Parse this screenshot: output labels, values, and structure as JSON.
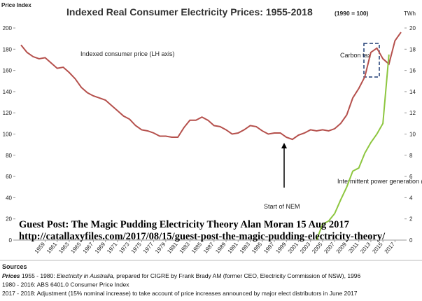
{
  "chart_data": {
    "type": "line",
    "title": "Indexed Real Consumer Electricity Prices: 1955-2018",
    "subtitle": "(1990 = 100)",
    "y_label": "Price Index",
    "y2_label": "TWh",
    "annotations": [
      "Indexed consumer price (LH axis)",
      "Carbon tax",
      "Intermittent power generation (RH axis)",
      "Start of NEM"
    ],
    "overlay": [
      "Guest Post: The Magic Pudding Electricity Theory Alan Moran 15 Aug 2017",
      "http://catallaxyfiles.com/2017/08/15/guest-post-the-magic-pudding-electricity-theory/"
    ],
    "x": [
      1955,
      1956,
      1957,
      1958,
      1959,
      1960,
      1961,
      1962,
      1963,
      1964,
      1965,
      1966,
      1967,
      1968,
      1969,
      1970,
      1971,
      1972,
      1973,
      1974,
      1975,
      1976,
      1977,
      1978,
      1979,
      1980,
      1981,
      1982,
      1983,
      1984,
      1985,
      1986,
      1987,
      1988,
      1989,
      1990,
      1991,
      1992,
      1993,
      1994,
      1995,
      1996,
      1997,
      1998,
      1999,
      2000,
      2001,
      2002,
      2003,
      2004,
      2005,
      2006,
      2007,
      2008,
      2009,
      2010,
      2011,
      2012,
      2013,
      2014,
      2015,
      2016,
      2017,
      2018
    ],
    "series": [
      {
        "name": "Indexed consumer price",
        "color": "#b5504c",
        "values": [
          184,
          177,
          173,
          171,
          172,
          167,
          162,
          163,
          158,
          152,
          144,
          139,
          136,
          134,
          132,
          127,
          122,
          117,
          114,
          108,
          104,
          103,
          101,
          98,
          98,
          97,
          97,
          106,
          113,
          113,
          116,
          113,
          108,
          107,
          104,
          100,
          101,
          104,
          108,
          107,
          103,
          100,
          101,
          101,
          97,
          95,
          99,
          101,
          104,
          103,
          104,
          103,
          105,
          110,
          118,
          134,
          143,
          154,
          177,
          181,
          171,
          166,
          188,
          196
        ]
      },
      {
        "name": "Intermittent power generation",
        "color": "#8dc63f",
        "axis": "y2",
        "values": [
          null,
          null,
          null,
          null,
          null,
          null,
          null,
          null,
          null,
          null,
          null,
          null,
          null,
          null,
          null,
          null,
          null,
          null,
          null,
          null,
          null,
          null,
          null,
          null,
          null,
          null,
          null,
          null,
          null,
          null,
          null,
          null,
          null,
          null,
          null,
          null,
          null,
          null,
          null,
          null,
          null,
          null,
          null,
          null,
          null,
          null,
          null,
          null,
          null,
          0,
          1.5,
          1.8,
          2.5,
          3.8,
          5,
          6.5,
          6.8,
          8.2,
          9.2,
          10,
          11,
          17.5,
          null,
          null
        ]
      }
    ],
    "xlim": [
      1955,
      2018
    ],
    "xticks": [
      1959,
      1961,
      1963,
      1965,
      1967,
      1969,
      1971,
      1973,
      1975,
      1977,
      1979,
      1981,
      1983,
      1985,
      1987,
      1989,
      1991,
      1993,
      1995,
      1997,
      1999,
      2001,
      2003,
      2005,
      2007,
      2009,
      2011,
      2013,
      2015,
      2017
    ],
    "ylim": [
      0,
      200
    ],
    "yticks": [
      0,
      20,
      40,
      60,
      80,
      100,
      120,
      140,
      160,
      180,
      200
    ],
    "y2lim": [
      0,
      20
    ],
    "y2ticks": [
      0,
      2,
      4,
      6,
      8,
      10,
      12,
      14,
      16,
      18,
      20
    ],
    "grid": false
  },
  "sources": {
    "heading": "Sources",
    "lines": [
      [
        {
          "text": "Prices",
          "italic": true
        },
        {
          "text": " 1955 - 1980: "
        },
        {
          "text": "Electricity in Australia",
          "italic": true
        },
        {
          "text": ", prepared for CIGRE by Frank Brady AM (former CEO, Electricity Commission of NSW), 1996"
        }
      ],
      [
        {
          "text": "1980 - 2016: ABS 6401.0 Consumer Price Index"
        }
      ],
      [
        {
          "text": "2017 - 2018: Adjustment (15% nominal increase) to take account of price increases announced by major elect distributors in June 2017"
        }
      ]
    ]
  }
}
